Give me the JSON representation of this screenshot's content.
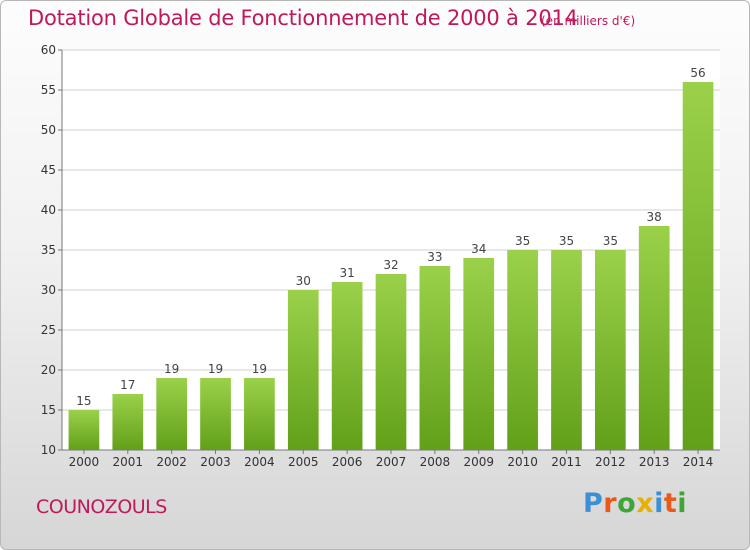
{
  "title": "Dotation Globale de Fonctionnement de 2000 à 2014",
  "unit_note": "(en milliers d'€)",
  "place": "COUNOZOULS",
  "logo": {
    "text": "Proxiti",
    "letters": [
      "P",
      "r",
      "o",
      "x",
      "i",
      "t",
      "i"
    ],
    "colors": [
      "#3a8fd6",
      "#e85a1a",
      "#3fa535",
      "#e8b000",
      "#3a8fd6",
      "#e85a1a",
      "#3fa535"
    ]
  },
  "colors": {
    "title": "#c2185b",
    "bar_top": "#9bd14a",
    "bar_bottom": "#62a01a",
    "grid": "#d0d0d0"
  },
  "chart_data": {
    "type": "bar",
    "categories": [
      "2000",
      "2001",
      "2002",
      "2003",
      "2004",
      "2005",
      "2006",
      "2007",
      "2008",
      "2009",
      "2010",
      "2011",
      "2012",
      "2013",
      "2014"
    ],
    "values": [
      15,
      17,
      19,
      19,
      19,
      30,
      31,
      32,
      33,
      34,
      35,
      35,
      35,
      38,
      56
    ],
    "ylim": [
      10,
      60
    ],
    "yticks": [
      10,
      15,
      20,
      25,
      30,
      35,
      40,
      45,
      50,
      55,
      60
    ],
    "grid": true
  }
}
